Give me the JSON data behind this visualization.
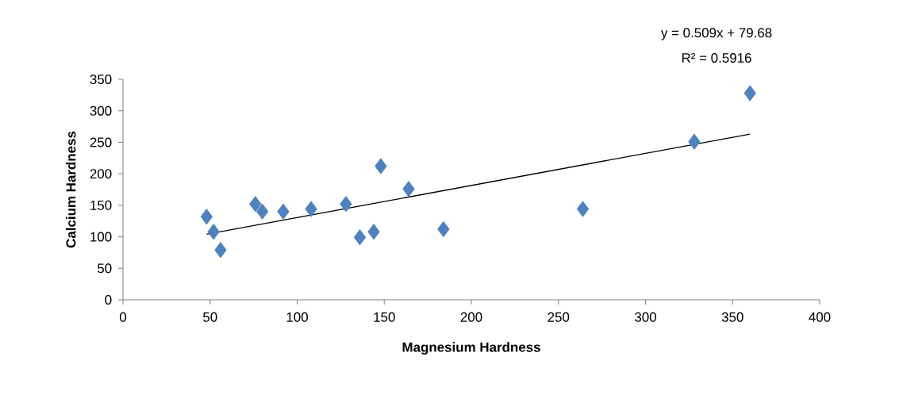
{
  "chart_data": {
    "type": "scatter",
    "xlabel": "Magnesium Hardness",
    "ylabel": "Calcium Hardness",
    "xlim": [
      0,
      400
    ],
    "xticks": [
      0,
      50,
      100,
      150,
      200,
      250,
      300,
      350,
      400
    ],
    "ylim": [
      0,
      350
    ],
    "yticks": [
      0,
      50,
      100,
      150,
      200,
      250,
      300,
      350
    ],
    "grid": false,
    "marker": "diamond",
    "annotations": [
      "y = 0.509x + 79.68",
      "R² = 0.5916"
    ],
    "series": [
      {
        "color": "#4f81bd",
        "x": [
          48,
          52,
          56,
          76,
          80,
          92,
          108,
          128,
          136,
          144,
          148,
          164,
          184,
          264,
          328,
          360
        ],
        "values": [
          132,
          108,
          79,
          152,
          140,
          140,
          144,
          152,
          99,
          108,
          212,
          176,
          112,
          144,
          251,
          328
        ]
      },
      {
        "type": "line",
        "color": "#000000",
        "marker": "none",
        "line_style": "solid",
        "x": [
          48,
          360
        ],
        "values": [
          104,
          263
        ]
      }
    ]
  }
}
